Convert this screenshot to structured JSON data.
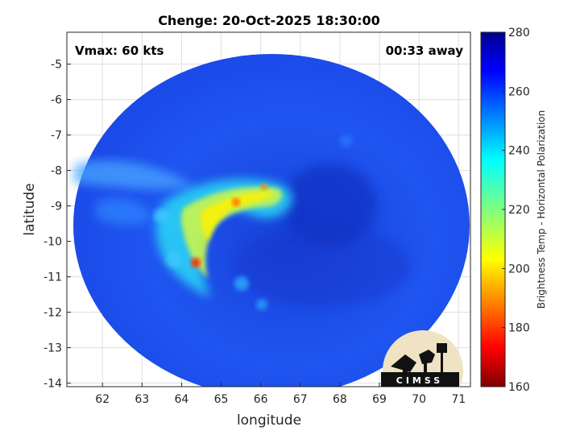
{
  "chart_data": {
    "type": "heatmap",
    "title": "Chenge: 20-Oct-2025 18:30:00",
    "xlabel": "longitude",
    "ylabel": "latitude",
    "xlim": [
      61.1,
      71.3
    ],
    "ylim": [
      -14.1,
      -4.1
    ],
    "x_ticks": [
      62,
      63,
      64,
      65,
      66,
      67,
      68,
      69,
      70,
      71
    ],
    "y_ticks": [
      -5,
      -6,
      -7,
      -8,
      -9,
      -10,
      -11,
      -12,
      -13,
      -14
    ],
    "grid": true,
    "annotations": {
      "left": "Vmax: 60 kts",
      "right": "00:33 away"
    },
    "colorbar": {
      "label": "Brightness Temp - Horizontal Polarization",
      "range": [
        160,
        280
      ],
      "ticks": [
        160,
        180,
        200,
        220,
        240,
        260,
        280
      ],
      "colormap": "jet"
    },
    "features": {
      "swath_center": [
        66.5,
        -9.3
      ],
      "cold_rainband_peak_C": 185,
      "background_C": 262
    },
    "logo": "CIMSS"
  }
}
